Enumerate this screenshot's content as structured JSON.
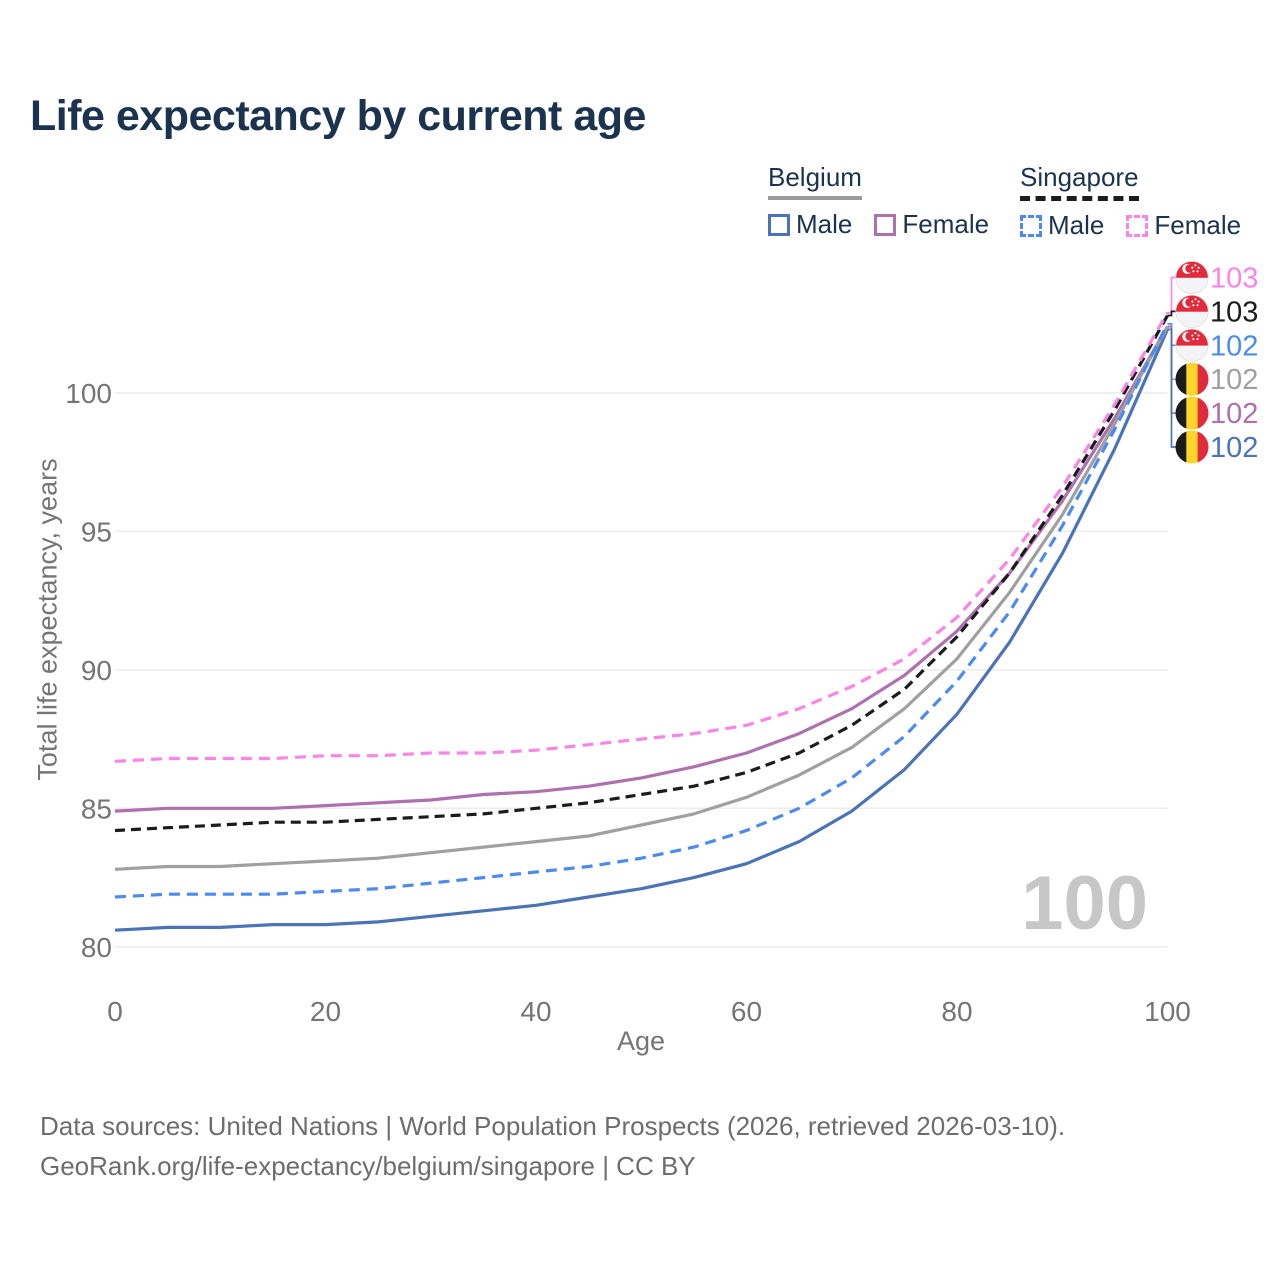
{
  "page": {
    "title": "Life expectancy by current age"
  },
  "legend": {
    "belgium": {
      "label": "Belgium",
      "male": "Male",
      "female": "Female"
    },
    "singapore": {
      "label": "Singapore",
      "male": "Male",
      "female": "Female"
    }
  },
  "axes": {
    "x_label": "Age",
    "y_label": "Total life expectancy, years"
  },
  "footer": {
    "line1": "Data sources: United Nations | World Population Prospects (2026, retrieved 2026-03-10).",
    "line2": "GeoRank.org/life-expectancy/belgium/singapore | CC BY"
  },
  "colors": {
    "belgium_male": "#4a73b8",
    "belgium_female": "#ae70ae",
    "belgium_total": "#a0a0a0",
    "singapore_male": "#4b8bf0",
    "singapore_female": "#fb84e6",
    "singapore_total": "#1c1c1c",
    "legend_belgium_rule": "#9b9b9b",
    "legend_singapore_rule": "#1c1c1c",
    "title_text": "#1c3350",
    "axis_text": "#757575",
    "grid": "#ececec",
    "watermark": "#c7c7c7"
  },
  "chart_data": {
    "type": "line",
    "title": "Life expectancy by current age",
    "xlabel": "Age",
    "ylabel": "Total life expectancy, years",
    "xlim": [
      0,
      100
    ],
    "ylim": [
      79.5,
      104
    ],
    "x_ticks": [
      0,
      20,
      40,
      60,
      80,
      100
    ],
    "y_ticks": [
      80,
      85,
      90,
      95,
      100
    ],
    "grid": "horizontal-only",
    "legend_position": "top-right",
    "watermark": "100",
    "ages": [
      0,
      5,
      10,
      15,
      20,
      25,
      30,
      35,
      40,
      45,
      50,
      55,
      60,
      65,
      70,
      75,
      80,
      85,
      90,
      95,
      100
    ],
    "series": [
      {
        "name": "Singapore Female",
        "country": "Singapore",
        "sex": "Female",
        "line": "dashed",
        "color": "#fb84e6",
        "flag": "singapore",
        "end_label": "103",
        "values": [
          86.7,
          86.8,
          86.8,
          86.8,
          86.9,
          86.9,
          87.0,
          87.0,
          87.1,
          87.3,
          87.5,
          87.7,
          88.0,
          88.6,
          89.4,
          90.4,
          91.9,
          94.0,
          96.6,
          99.6,
          102.9
        ]
      },
      {
        "name": "Singapore Total",
        "country": "Singapore",
        "sex": "All",
        "line": "dashed",
        "color": "#1c1c1c",
        "flag": "singapore",
        "end_label": "103",
        "values": [
          84.2,
          84.3,
          84.4,
          84.5,
          84.5,
          84.6,
          84.7,
          84.8,
          85.0,
          85.2,
          85.5,
          85.8,
          86.3,
          87.0,
          88.0,
          89.3,
          91.2,
          93.5,
          96.3,
          99.4,
          102.8
        ]
      },
      {
        "name": "Singapore Male",
        "country": "Singapore",
        "sex": "Male",
        "line": "dashed",
        "color": "#4b8bf0",
        "flag": "singapore",
        "end_label": "102",
        "values": [
          81.8,
          81.9,
          81.9,
          81.9,
          82.0,
          82.1,
          82.3,
          82.5,
          82.7,
          82.9,
          83.2,
          83.6,
          84.2,
          85.0,
          86.1,
          87.6,
          89.6,
          92.1,
          95.2,
          98.7,
          102.5
        ]
      },
      {
        "name": "Belgium Total",
        "country": "Belgium",
        "sex": "All",
        "line": "solid",
        "color": "#a0a0a0",
        "flag": "belgium",
        "end_label": "102",
        "values": [
          82.8,
          82.9,
          82.9,
          83.0,
          83.1,
          83.2,
          83.4,
          83.6,
          83.8,
          84.0,
          84.4,
          84.8,
          85.4,
          86.2,
          87.2,
          88.6,
          90.4,
          92.8,
          95.6,
          98.9,
          102.4
        ]
      },
      {
        "name": "Belgium Female",
        "country": "Belgium",
        "sex": "Female",
        "line": "solid",
        "color": "#ae70ae",
        "flag": "belgium",
        "end_label": "102",
        "values": [
          84.9,
          85.0,
          85.0,
          85.0,
          85.1,
          85.2,
          85.3,
          85.5,
          85.6,
          85.8,
          86.1,
          86.5,
          87.0,
          87.7,
          88.6,
          89.8,
          91.4,
          93.5,
          96.1,
          99.1,
          102.4
        ]
      },
      {
        "name": "Belgium Male",
        "country": "Belgium",
        "sex": "Male",
        "line": "solid",
        "color": "#4a73b8",
        "flag": "belgium",
        "end_label": "102",
        "values": [
          80.6,
          80.7,
          80.7,
          80.8,
          80.8,
          80.9,
          81.1,
          81.3,
          81.5,
          81.8,
          82.1,
          82.5,
          83.0,
          83.8,
          84.9,
          86.4,
          88.4,
          91.0,
          94.2,
          98.0,
          102.3
        ]
      }
    ]
  }
}
